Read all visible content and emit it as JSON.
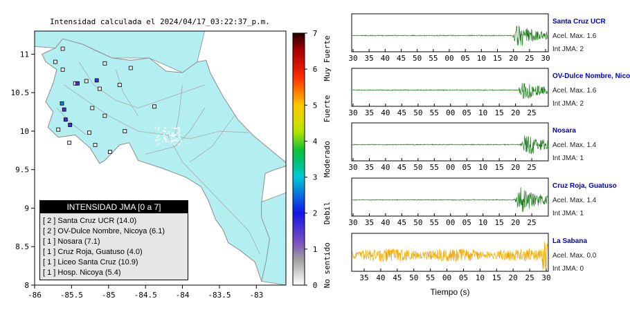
{
  "map": {
    "title": "Intensidad calculada el 2024/04/17_03:22:37_p.m.",
    "x_ticks": [
      "-86",
      "-85.5",
      "-85",
      "-84.5",
      "-84",
      "-83.5",
      "-83"
    ],
    "y_ticks": [
      "11",
      "10.5",
      "10",
      "9.5",
      "9",
      "8.5",
      "8"
    ],
    "land_color": "#b3eef0",
    "water_color": "#ffffff"
  },
  "colorbar": {
    "ticks": [
      "0",
      "1",
      "2",
      "3",
      "4",
      "5",
      "6",
      "7"
    ],
    "labels": [
      "No sentido",
      "Debil",
      "Moderado",
      "Fuerte",
      "Muy Fuerte"
    ]
  },
  "legend": {
    "title": "INTENSIDAD JMA [0 a 7]",
    "items": [
      {
        "level": "[ 2 ]",
        "name": "Santa Cruz UCR (14.0)"
      },
      {
        "level": "[ 2 ]",
        "name": "OV-Dulce Nombre, Nicoya (6.1)"
      },
      {
        "level": "[ 1 ]",
        "name": "Nosara (7.1)"
      },
      {
        "level": "[ 1 ]",
        "name": "Cruz Roja, Guatuso (4.0)"
      },
      {
        "level": "[ 1 ]",
        "name": "Liceo Santa Cruz (10.9)"
      },
      {
        "level": "[ 1 ]",
        "name": "Hosp. Nicoya (5.4)"
      }
    ]
  },
  "chart_data": [
    {
      "type": "scatter",
      "title": "Intensidad calculada el 2024/04/17_03:22:37_p.m.",
      "xlim": [
        -86,
        -82.6
      ],
      "ylim": [
        8,
        11.3
      ],
      "colorbar_range": [
        0,
        7
      ],
      "points": [
        {
          "lon": -85.63,
          "lat": 10.36,
          "intensity": 2
        },
        {
          "lon": -85.58,
          "lat": 10.15,
          "intensity": 1
        },
        {
          "lon": -85.6,
          "lat": 10.28,
          "intensity": 1
        },
        {
          "lon": -85.52,
          "lat": 10.08,
          "intensity": 1
        },
        {
          "lon": -85.68,
          "lat": 10.02,
          "intensity": 0
        },
        {
          "lon": -85.45,
          "lat": 10.62,
          "intensity": 0
        },
        {
          "lon": -85.62,
          "lat": 10.8,
          "intensity": 0
        },
        {
          "lon": -85.62,
          "lat": 11.07,
          "intensity": 0
        },
        {
          "lon": -85.05,
          "lat": 10.88,
          "intensity": 0
        },
        {
          "lon": -85.12,
          "lat": 10.55,
          "intensity": 0
        },
        {
          "lon": -85.22,
          "lat": 10.3,
          "intensity": 0
        },
        {
          "lon": -85.05,
          "lat": 10.2,
          "intensity": 0
        },
        {
          "lon": -85.26,
          "lat": 9.98,
          "intensity": 0
        },
        {
          "lon": -85.18,
          "lat": 9.82,
          "intensity": 0
        },
        {
          "lon": -84.78,
          "lat": 10.0,
          "intensity": 0
        },
        {
          "lon": -84.98,
          "lat": 9.73,
          "intensity": 0
        },
        {
          "lon": -84.85,
          "lat": 10.6,
          "intensity": 0
        },
        {
          "lon": -84.38,
          "lat": 10.32,
          "intensity": 0
        },
        {
          "lon": -84.7,
          "lat": 10.82,
          "intensity": 0
        },
        {
          "lon": -85.3,
          "lat": 10.65,
          "intensity": 0
        },
        {
          "lon": -85.72,
          "lat": 10.9,
          "intensity": 0
        },
        {
          "lon": -85.42,
          "lat": 10.62,
          "intensity": 1
        },
        {
          "lon": -85.16,
          "lat": 10.66,
          "intensity": 1
        },
        {
          "lon": -85.53,
          "lat": 9.85,
          "intensity": 0
        }
      ]
    },
    {
      "type": "line",
      "xlabel": "Tiempo (s)",
      "x_tick_labels": [
        "35",
        "40",
        "45",
        "50",
        "55",
        "00",
        "05",
        "10",
        "15",
        "20",
        "25",
        "30"
      ],
      "series": [
        {
          "name": "Santa Cruz UCR",
          "peak": "Acel. Max. 1.6",
          "jma": "Int JMA: 2",
          "x_ticks": [
            "30",
            "35",
            "40",
            "45",
            "50",
            "55",
            "00",
            "05",
            "10",
            "15",
            "20",
            "25",
            "30"
          ],
          "color": "#1a7a1a",
          "onset_fraction": 0.82,
          "amp": 1.0
        },
        {
          "name": "OV-Dulce Nombre, Nicoya",
          "peak": "Acel. Max. 1.6",
          "jma": "Int JMA: 2",
          "x_ticks": [
            "30",
            "35",
            "40",
            "45",
            "50",
            "55",
            "00",
            "05",
            "10",
            "15",
            "20",
            "25"
          ],
          "color": "#1a7a1a",
          "onset_fraction": 0.85,
          "amp": 0.75
        },
        {
          "name": "Nosara",
          "peak": "Acel. Max. 1.4",
          "jma": "Int JMA: 1",
          "x_ticks": [
            "30",
            "35",
            "40",
            "45",
            "50",
            "55",
            "00",
            "05",
            "10",
            "15",
            "20",
            "25"
          ],
          "color": "#1a7a1a",
          "onset_fraction": 0.86,
          "amp": 0.9
        },
        {
          "name": "Cruz Roja, Guatuso",
          "peak": "Acel. Max. 1.4",
          "jma": "Int JMA: 1",
          "x_ticks": [
            "30",
            "35",
            "40",
            "45",
            "50",
            "55",
            "00",
            "05",
            "10",
            "15",
            "20",
            "25"
          ],
          "color": "#1a7a1a",
          "onset_fraction": 0.83,
          "amp": 1.0
        },
        {
          "name": "La Sabana",
          "peak": "Acel. Max. 0.0",
          "jma": "Int JMA: 0",
          "x_ticks": [
            "35",
            "40",
            "45",
            "50",
            "55",
            "00",
            "05",
            "10",
            "15",
            "20",
            "25",
            "30"
          ],
          "color": "#f2a900",
          "onset_fraction": 0.0,
          "amp": 0.45
        }
      ]
    }
  ]
}
